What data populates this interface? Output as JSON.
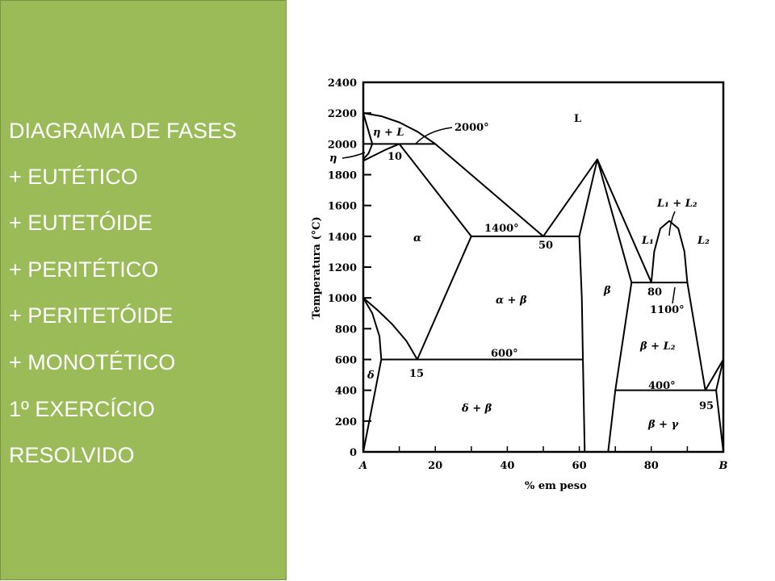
{
  "slide": {
    "items": [
      "DIAGRAMA DE FASES",
      "+ EUTÉTICO",
      "+ EUTETÓIDE",
      "+ PERITÉTICO",
      "+ PERITETÓIDE",
      "+ MONOTÉTICO",
      "1º EXERCÍCIO",
      "RESOLVIDO"
    ],
    "panel_color": "#9bbb59"
  },
  "chart_data": {
    "type": "phase-diagram",
    "xlabel": "% em peso",
    "ylabel": "Temperatura (°C)",
    "xlim": [
      0,
      100
    ],
    "ylim": [
      0,
      2400
    ],
    "x_ticks": [
      "A",
      "20",
      "40",
      "60",
      "80",
      "B"
    ],
    "y_ticks": [
      "0",
      "200",
      "400",
      "600",
      "800",
      "1000",
      "1200",
      "1400",
      "1600",
      "1800",
      "2000",
      "2200",
      "2400"
    ],
    "labels": {
      "L": "L",
      "eta_L": "η + L",
      "t2000": "2000°",
      "eta": "η",
      "p10": "10",
      "alpha": "α",
      "t1400": "1400°",
      "p50": "50",
      "alpha_beta": "α + β",
      "beta": "β",
      "L1_L2": "L₁ + L₂",
      "L1": "L₁",
      "L2": "L₂",
      "p80": "80",
      "t1100": "1100°",
      "beta_L2": "β + L₂",
      "t600": "600°",
      "p15": "15",
      "delta": "δ",
      "delta_beta": "δ + β",
      "t400": "400°",
      "p95": "95",
      "beta_gamma": "β + γ"
    },
    "boundaries": [
      [
        [
          0,
          2200
        ],
        [
          5,
          2180
        ],
        [
          10,
          2140
        ],
        [
          15,
          2080
        ],
        [
          20,
          2000
        ],
        [
          50,
          1400
        ],
        [
          65,
          1900
        ],
        [
          80,
          1100
        ]
      ],
      [
        [
          80,
          1100
        ],
        [
          80.8,
          1300
        ],
        [
          82.5,
          1450
        ],
        [
          85,
          1500
        ],
        [
          87.5,
          1450
        ],
        [
          89.2,
          1300
        ],
        [
          90,
          1100
        ],
        [
          95,
          400
        ],
        [
          100,
          600
        ]
      ],
      [
        [
          65,
          1900
        ],
        [
          60,
          1400
        ],
        [
          60.7,
          1000
        ],
        [
          61,
          600
        ],
        [
          61.5,
          0
        ]
      ],
      [
        [
          65,
          1900
        ],
        [
          74.5,
          1100
        ],
        [
          70,
          400
        ],
        [
          68,
          0
        ]
      ],
      [
        [
          2.5,
          2000
        ],
        [
          20,
          2000
        ]
      ],
      [
        [
          30,
          1400
        ],
        [
          60,
          1400
        ]
      ],
      [
        [
          5,
          600
        ],
        [
          61,
          600
        ]
      ],
      [
        [
          74.5,
          1100
        ],
        [
          90,
          1100
        ]
      ],
      [
        [
          70,
          400
        ],
        [
          98,
          400
        ]
      ],
      [
        [
          0,
          2200
        ],
        [
          2.5,
          2000
        ],
        [
          1.5,
          1940
        ],
        [
          0,
          1900
        ]
      ],
      [
        [
          10,
          2000
        ],
        [
          6,
          1960
        ],
        [
          3,
          1925
        ],
        [
          0,
          1890
        ]
      ],
      [
        [
          10,
          2000
        ],
        [
          30,
          1400
        ],
        [
          15,
          600
        ]
      ],
      [
        [
          0,
          1000
        ],
        [
          4,
          920
        ],
        [
          8,
          830
        ],
        [
          12,
          720
        ],
        [
          15,
          600
        ]
      ],
      [
        [
          0,
          1000
        ],
        [
          2.5,
          900
        ],
        [
          4.5,
          750
        ],
        [
          5,
          600
        ],
        [
          0,
          0
        ]
      ],
      [
        [
          98,
          400
        ],
        [
          99,
          500
        ],
        [
          100,
          600
        ]
      ],
      [
        [
          98,
          400
        ],
        [
          100,
          0
        ]
      ]
    ]
  }
}
